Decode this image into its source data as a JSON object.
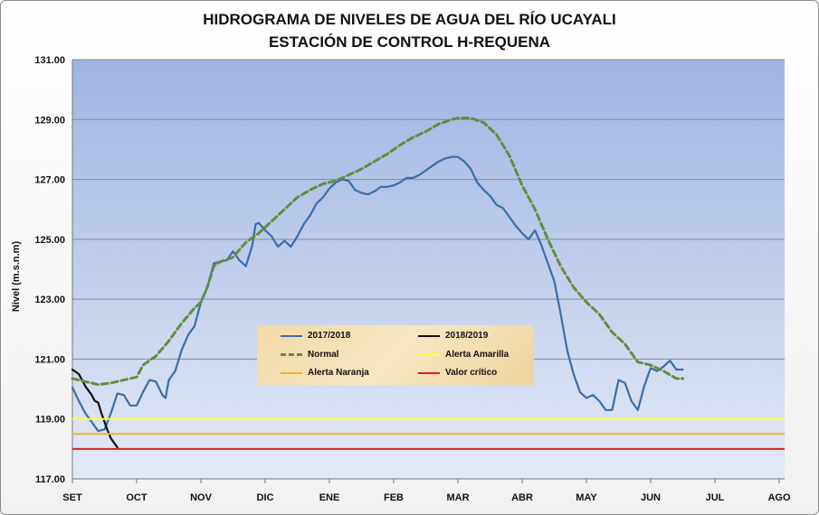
{
  "chart_data": {
    "type": "line",
    "title": "HIDROGRAMA DE NIVELES DE AGUA DEL RÍO UCAYALI",
    "subtitle": "ESTACIÓN DE CONTROL H-REQUENA",
    "ylabel": "Nivel (m.s.n.m)",
    "ylim": [
      117,
      131
    ],
    "yticks": [
      "117.00",
      "119.00",
      "121.00",
      "123.00",
      "125.00",
      "127.00",
      "129.00",
      "131.00"
    ],
    "categories": [
      "SET",
      "OCT",
      "NOV",
      "DIC",
      "ENE",
      "FEB",
      "MAR",
      "ABR",
      "MAY",
      "JUN",
      "JUL",
      "AGO"
    ],
    "grid": true,
    "legend_position": "center",
    "series": [
      {
        "name": "2017/2018",
        "color": "#3a6ea8",
        "style": "solid",
        "points": [
          [
            0,
            120.05
          ],
          [
            0.1,
            119.6
          ],
          [
            0.2,
            119.2
          ],
          [
            0.3,
            118.9
          ],
          [
            0.4,
            118.6
          ],
          [
            0.5,
            118.65
          ],
          [
            0.6,
            119.2
          ],
          [
            0.7,
            119.85
          ],
          [
            0.8,
            119.8
          ],
          [
            0.9,
            119.45
          ],
          [
            1.0,
            119.45
          ],
          [
            1.1,
            119.9
          ],
          [
            1.2,
            120.3
          ],
          [
            1.3,
            120.25
          ],
          [
            1.4,
            119.8
          ],
          [
            1.45,
            119.7
          ],
          [
            1.5,
            120.3
          ],
          [
            1.6,
            120.6
          ],
          [
            1.7,
            121.3
          ],
          [
            1.8,
            121.8
          ],
          [
            1.9,
            122.1
          ],
          [
            2.0,
            122.9
          ],
          [
            2.1,
            123.4
          ],
          [
            2.2,
            124.2
          ],
          [
            2.3,
            124.25
          ],
          [
            2.4,
            124.3
          ],
          [
            2.5,
            124.6
          ],
          [
            2.6,
            124.3
          ],
          [
            2.7,
            124.1
          ],
          [
            2.8,
            124.8
          ],
          [
            2.85,
            125.5
          ],
          [
            2.9,
            125.55
          ],
          [
            3.0,
            125.3
          ],
          [
            3.1,
            125.1
          ],
          [
            3.2,
            124.75
          ],
          [
            3.3,
            124.95
          ],
          [
            3.4,
            124.75
          ],
          [
            3.5,
            125.1
          ],
          [
            3.6,
            125.5
          ],
          [
            3.7,
            125.8
          ],
          [
            3.8,
            126.2
          ],
          [
            3.9,
            126.4
          ],
          [
            4.0,
            126.7
          ],
          [
            4.1,
            126.9
          ],
          [
            4.2,
            127.0
          ],
          [
            4.3,
            126.95
          ],
          [
            4.4,
            126.65
          ],
          [
            4.5,
            126.55
          ],
          [
            4.6,
            126.5
          ],
          [
            4.7,
            126.6
          ],
          [
            4.8,
            126.75
          ],
          [
            4.9,
            126.75
          ],
          [
            5.0,
            126.8
          ],
          [
            5.1,
            126.9
          ],
          [
            5.2,
            127.05
          ],
          [
            5.3,
            127.05
          ],
          [
            5.4,
            127.15
          ],
          [
            5.5,
            127.3
          ],
          [
            5.6,
            127.45
          ],
          [
            5.7,
            127.6
          ],
          [
            5.8,
            127.7
          ],
          [
            5.9,
            127.75
          ],
          [
            6.0,
            127.75
          ],
          [
            6.1,
            127.6
          ],
          [
            6.2,
            127.35
          ],
          [
            6.3,
            126.9
          ],
          [
            6.4,
            126.65
          ],
          [
            6.5,
            126.45
          ],
          [
            6.6,
            126.15
          ],
          [
            6.7,
            126.05
          ],
          [
            6.8,
            125.75
          ],
          [
            6.9,
            125.45
          ],
          [
            7.0,
            125.2
          ],
          [
            7.1,
            125.0
          ],
          [
            7.2,
            125.3
          ],
          [
            7.3,
            124.8
          ],
          [
            7.4,
            124.2
          ],
          [
            7.5,
            123.6
          ],
          [
            7.6,
            122.5
          ],
          [
            7.7,
            121.3
          ],
          [
            7.8,
            120.5
          ],
          [
            7.9,
            119.9
          ],
          [
            8.0,
            119.7
          ],
          [
            8.1,
            119.8
          ],
          [
            8.2,
            119.6
          ],
          [
            8.3,
            119.3
          ],
          [
            8.4,
            119.3
          ],
          [
            8.5,
            120.3
          ],
          [
            8.6,
            120.2
          ],
          [
            8.7,
            119.6
          ],
          [
            8.8,
            119.3
          ],
          [
            8.9,
            120.1
          ],
          [
            9.0,
            120.7
          ],
          [
            9.1,
            120.6
          ],
          [
            9.2,
            120.75
          ],
          [
            9.3,
            120.95
          ],
          [
            9.4,
            120.65
          ],
          [
            9.5,
            120.65
          ]
        ]
      },
      {
        "name": "2018/2019",
        "color": "#111111",
        "style": "solid",
        "points": [
          [
            0,
            120.65
          ],
          [
            0.1,
            120.5
          ],
          [
            0.2,
            120.1
          ],
          [
            0.3,
            119.8
          ],
          [
            0.35,
            119.6
          ],
          [
            0.4,
            119.55
          ],
          [
            0.45,
            119.2
          ],
          [
            0.5,
            118.9
          ],
          [
            0.55,
            118.6
          ],
          [
            0.6,
            118.35
          ],
          [
            0.65,
            118.2
          ],
          [
            0.7,
            118.05
          ]
        ]
      },
      {
        "name": "Normal",
        "color": "#5f8f3e",
        "style": "dashed",
        "points": [
          [
            0,
            120.35
          ],
          [
            0.2,
            120.25
          ],
          [
            0.4,
            120.15
          ],
          [
            0.6,
            120.2
          ],
          [
            0.8,
            120.3
          ],
          [
            1.0,
            120.4
          ],
          [
            1.1,
            120.8
          ],
          [
            1.3,
            121.1
          ],
          [
            1.5,
            121.6
          ],
          [
            1.7,
            122.2
          ],
          [
            1.9,
            122.7
          ],
          [
            2.0,
            122.9
          ],
          [
            2.1,
            123.4
          ],
          [
            2.2,
            124.1
          ],
          [
            2.3,
            124.25
          ],
          [
            2.5,
            124.4
          ],
          [
            2.7,
            124.9
          ],
          [
            2.9,
            125.2
          ],
          [
            3.1,
            125.6
          ],
          [
            3.3,
            126.0
          ],
          [
            3.5,
            126.4
          ],
          [
            3.7,
            126.65
          ],
          [
            3.9,
            126.85
          ],
          [
            4.1,
            126.95
          ],
          [
            4.3,
            127.15
          ],
          [
            4.5,
            127.35
          ],
          [
            4.7,
            127.6
          ],
          [
            4.9,
            127.85
          ],
          [
            5.1,
            128.15
          ],
          [
            5.3,
            128.4
          ],
          [
            5.5,
            128.6
          ],
          [
            5.7,
            128.85
          ],
          [
            5.9,
            129.0
          ],
          [
            6.0,
            129.05
          ],
          [
            6.2,
            129.05
          ],
          [
            6.4,
            128.9
          ],
          [
            6.6,
            128.5
          ],
          [
            6.8,
            127.8
          ],
          [
            7.0,
            126.8
          ],
          [
            7.2,
            126.0
          ],
          [
            7.4,
            125.0
          ],
          [
            7.6,
            124.1
          ],
          [
            7.8,
            123.4
          ],
          [
            8.0,
            122.9
          ],
          [
            8.2,
            122.5
          ],
          [
            8.4,
            121.9
          ],
          [
            8.6,
            121.5
          ],
          [
            8.8,
            120.9
          ],
          [
            9.0,
            120.8
          ],
          [
            9.2,
            120.6
          ],
          [
            9.4,
            120.35
          ],
          [
            9.5,
            120.35
          ]
        ]
      },
      {
        "name": "Alerta Amarilla",
        "color": "#ffff33",
        "style": "solid",
        "constant": 119.0
      },
      {
        "name": "Alerta Naranja",
        "color": "#f5b22a",
        "style": "solid",
        "constant": 118.5
      },
      {
        "name": "Valor crítico",
        "color": "#e0201b",
        "style": "solid",
        "constant": 118.0
      }
    ]
  }
}
